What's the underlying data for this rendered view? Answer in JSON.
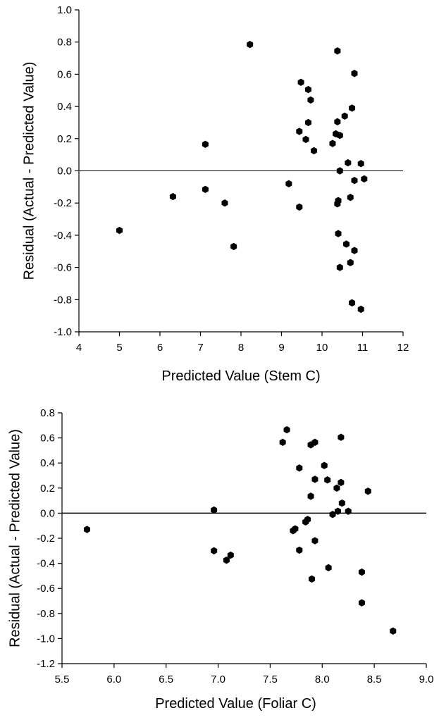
{
  "chart_data": [
    {
      "type": "scatter",
      "title": "",
      "xlabel": "Predicted Value (Stem C)",
      "ylabel": "Residual (Actual - Predicted Value)",
      "xlim": [
        4,
        12
      ],
      "ylim": [
        -1.0,
        1.0
      ],
      "xticks": [
        "4",
        "5",
        "6",
        "7",
        "8",
        "9",
        "10",
        "11",
        "12"
      ],
      "yticks": [
        "-1.0",
        "-0.8",
        "-0.6",
        "-0.4",
        "-0.2",
        "0.0",
        "0.2",
        "0.4",
        "0.6",
        "0.8",
        "1.0"
      ],
      "reference_line_y": 0,
      "marker_color": "#000000",
      "points": [
        {
          "x": 5.0,
          "y": -0.37
        },
        {
          "x": 6.32,
          "y": -0.16
        },
        {
          "x": 7.12,
          "y": 0.165
        },
        {
          "x": 7.12,
          "y": -0.115
        },
        {
          "x": 7.6,
          "y": -0.2
        },
        {
          "x": 7.82,
          "y": -0.47
        },
        {
          "x": 8.22,
          "y": 0.785
        },
        {
          "x": 9.18,
          "y": -0.08
        },
        {
          "x": 9.44,
          "y": 0.245
        },
        {
          "x": 9.44,
          "y": -0.225
        },
        {
          "x": 9.48,
          "y": 0.55
        },
        {
          "x": 9.6,
          "y": 0.195
        },
        {
          "x": 9.66,
          "y": 0.505
        },
        {
          "x": 9.66,
          "y": 0.3
        },
        {
          "x": 9.72,
          "y": 0.44
        },
        {
          "x": 9.8,
          "y": 0.125
        },
        {
          "x": 10.26,
          "y": 0.17
        },
        {
          "x": 10.34,
          "y": 0.23
        },
        {
          "x": 10.38,
          "y": 0.745
        },
        {
          "x": 10.38,
          "y": 0.305
        },
        {
          "x": 10.38,
          "y": -0.205
        },
        {
          "x": 10.4,
          "y": -0.185
        },
        {
          "x": 10.4,
          "y": -0.39
        },
        {
          "x": 10.44,
          "y": 0.22
        },
        {
          "x": 10.44,
          "y": 0.0
        },
        {
          "x": 10.44,
          "y": -0.6
        },
        {
          "x": 10.56,
          "y": 0.34
        },
        {
          "x": 10.6,
          "y": -0.455
        },
        {
          "x": 10.64,
          "y": 0.05
        },
        {
          "x": 10.7,
          "y": -0.165
        },
        {
          "x": 10.7,
          "y": -0.57
        },
        {
          "x": 10.74,
          "y": 0.39
        },
        {
          "x": 10.74,
          "y": -0.82
        },
        {
          "x": 10.8,
          "y": 0.605
        },
        {
          "x": 10.8,
          "y": -0.06
        },
        {
          "x": 10.8,
          "y": -0.495
        },
        {
          "x": 10.96,
          "y": 0.045
        },
        {
          "x": 10.96,
          "y": -0.86
        },
        {
          "x": 11.04,
          "y": -0.05
        }
      ]
    },
    {
      "type": "scatter",
      "title": "",
      "xlabel": "Predicted Value (Foliar C)",
      "ylabel": "Residual (Actual - Predicted Value)",
      "xlim": [
        5.5,
        9.0
      ],
      "ylim": [
        -1.2,
        0.8
      ],
      "xticks": [
        "5.5",
        "6.0",
        "6.5",
        "7.0",
        "7.5",
        "8.0",
        "8.5",
        "9.0"
      ],
      "yticks": [
        "-1.2",
        "-1.0",
        "-0.8",
        "-0.6",
        "-0.4",
        "-0.2",
        "0.0",
        "0.2",
        "0.4",
        "0.6",
        "0.8"
      ],
      "reference_line_y": 0,
      "marker_color": "#000000",
      "points": [
        {
          "x": 5.74,
          "y": -0.13
        },
        {
          "x": 6.96,
          "y": 0.025
        },
        {
          "x": 6.96,
          "y": -0.3
        },
        {
          "x": 7.08,
          "y": -0.375
        },
        {
          "x": 7.12,
          "y": -0.335
        },
        {
          "x": 7.62,
          "y": 0.565
        },
        {
          "x": 7.66,
          "y": 0.665
        },
        {
          "x": 7.72,
          "y": -0.14
        },
        {
          "x": 7.74,
          "y": -0.125
        },
        {
          "x": 7.78,
          "y": 0.36
        },
        {
          "x": 7.78,
          "y": -0.295
        },
        {
          "x": 7.84,
          "y": -0.07
        },
        {
          "x": 7.86,
          "y": -0.05
        },
        {
          "x": 7.89,
          "y": 0.545
        },
        {
          "x": 7.89,
          "y": 0.135
        },
        {
          "x": 7.9,
          "y": -0.525
        },
        {
          "x": 7.93,
          "y": 0.565
        },
        {
          "x": 7.93,
          "y": 0.27
        },
        {
          "x": 7.93,
          "y": -0.22
        },
        {
          "x": 8.02,
          "y": 0.38
        },
        {
          "x": 8.05,
          "y": 0.265
        },
        {
          "x": 8.06,
          "y": -0.435
        },
        {
          "x": 8.1,
          "y": -0.01
        },
        {
          "x": 8.14,
          "y": 0.2
        },
        {
          "x": 8.15,
          "y": 0.015
        },
        {
          "x": 8.18,
          "y": 0.605
        },
        {
          "x": 8.18,
          "y": 0.245
        },
        {
          "x": 8.19,
          "y": 0.08
        },
        {
          "x": 8.25,
          "y": 0.015
        },
        {
          "x": 8.38,
          "y": -0.47
        },
        {
          "x": 8.38,
          "y": -0.715
        },
        {
          "x": 8.44,
          "y": 0.175
        },
        {
          "x": 8.68,
          "y": -0.94
        }
      ]
    }
  ]
}
